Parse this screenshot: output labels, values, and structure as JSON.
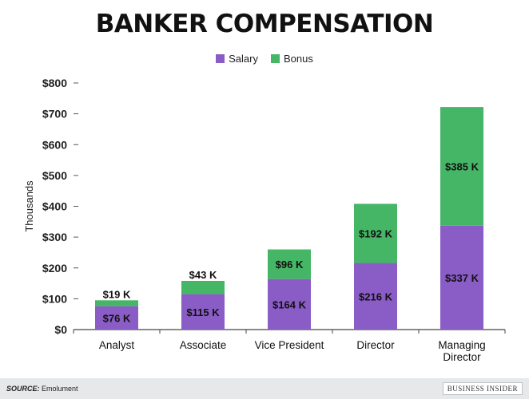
{
  "title": "BANKER COMPENSATION",
  "legend": [
    {
      "label": "Salary",
      "color": "#8a5cc6"
    },
    {
      "label": "Bonus",
      "color": "#45b566"
    }
  ],
  "footer": {
    "source_key": "SOURCE:",
    "source_value": "Emolument",
    "brand": "BUSINESS INSIDER"
  },
  "chart_data": {
    "type": "bar",
    "stacked": true,
    "ylabel": "Thousands",
    "xlabel": "",
    "ylim": [
      0,
      800
    ],
    "yticks": [
      0,
      100,
      200,
      300,
      400,
      500,
      600,
      700,
      800
    ],
    "ytick_labels": [
      "$0",
      "$100",
      "$200",
      "$300",
      "$400",
      "$500",
      "$600",
      "$700",
      "$800"
    ],
    "grid": false,
    "legend_position": "top-center",
    "categories": [
      "Analyst",
      "Associate",
      "Vice President",
      "Director",
      "Managing Director"
    ],
    "series": [
      {
        "name": "Salary",
        "color": "#8a5cc6",
        "values": [
          76,
          115,
          164,
          216,
          337
        ],
        "labels": [
          "$76 K",
          "$115 K",
          "$164 K",
          "$216 K",
          "$337 K"
        ]
      },
      {
        "name": "Bonus",
        "color": "#45b566",
        "values": [
          19,
          43,
          96,
          192,
          385
        ],
        "labels": [
          "$19 K",
          "$43 K",
          "$96 K",
          "$192 K",
          "$385 K"
        ]
      }
    ]
  }
}
